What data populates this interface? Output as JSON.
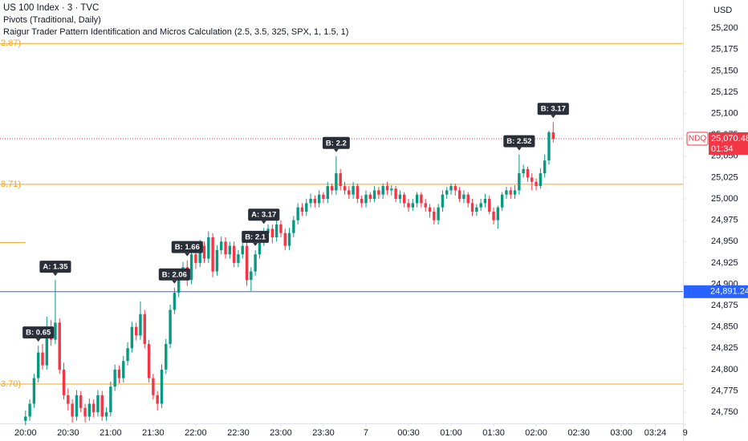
{
  "header": {
    "title": "US 100 Index · 3 · TVC",
    "indicator_1": "Pivots (Traditional, Daily)",
    "indicator_2": "Raigur Trader Pattern Identification and Micros Calculation (2.5, 3.5, 325, SPX, 1, 1.5, 1)",
    "currency": "USD"
  },
  "chart_data": {
    "type": "candlestick",
    "up_color": "#089981",
    "down_color": "#f23645",
    "ylim": [
      24737,
      25233
    ],
    "yticks": [
      {
        "value": 24750,
        "label": "24,750"
      },
      {
        "value": 24775,
        "label": "24,775"
      },
      {
        "value": 24800,
        "label": "24,800"
      },
      {
        "value": 24825,
        "label": "24,825"
      },
      {
        "value": 24850,
        "label": "24,850"
      },
      {
        "value": 24875,
        "label": "24,875"
      },
      {
        "value": 24900,
        "label": "24,900"
      },
      {
        "value": 24925,
        "label": "24,925"
      },
      {
        "value": 24950,
        "label": "24,950"
      },
      {
        "value": 24975,
        "label": "24,975"
      },
      {
        "value": 25000,
        "label": "25,000"
      },
      {
        "value": 25025,
        "label": "25,025"
      },
      {
        "value": 25050,
        "label": "25,050"
      },
      {
        "value": 25075,
        "label": "25,075"
      },
      {
        "value": 25100,
        "label": "25,100"
      },
      {
        "value": 25125,
        "label": "25,125"
      },
      {
        "value": 25150,
        "label": "25,150"
      },
      {
        "value": 25175,
        "label": "25,175"
      },
      {
        "value": 25200,
        "label": "25,200"
      }
    ],
    "xlim": [
      -6,
      154.5
    ],
    "xticks": [
      {
        "value": 0,
        "label": "20:00"
      },
      {
        "value": 10,
        "label": "20:30"
      },
      {
        "value": 20,
        "label": "21:00"
      },
      {
        "value": 30,
        "label": "21:30"
      },
      {
        "value": 40,
        "label": "22:00"
      },
      {
        "value": 50,
        "label": "22:30"
      },
      {
        "value": 60,
        "label": "23:00"
      },
      {
        "value": 70,
        "label": "23:30"
      },
      {
        "value": 80,
        "label": "7"
      },
      {
        "value": 90,
        "label": "00:30"
      },
      {
        "value": 100,
        "label": "01:00"
      },
      {
        "value": 110,
        "label": "01:30"
      },
      {
        "value": 120,
        "label": "02:00"
      },
      {
        "value": 130,
        "label": "02:30"
      },
      {
        "value": 140,
        "label": "03:00"
      },
      {
        "value": 148,
        "label": "03:24"
      },
      {
        "value": 155,
        "label": "9"
      }
    ],
    "candles": [
      [
        24740,
        24752,
        24735,
        24745
      ],
      [
        24745,
        24765,
        24740,
        24760
      ],
      [
        24760,
        24795,
        24755,
        24790
      ],
      [
        24790,
        24828,
        24785,
        24820
      ],
      [
        24820,
        24830,
        24800,
        24805
      ],
      [
        24805,
        24862,
        24800,
        24850
      ],
      [
        24850,
        24858,
        24828,
        24835
      ],
      [
        24835,
        24905,
        24830,
        24855
      ],
      [
        24855,
        24860,
        24795,
        24800
      ],
      [
        24800,
        24808,
        24765,
        24770
      ],
      [
        24770,
        24778,
        24752,
        24760
      ],
      [
        24760,
        24765,
        24738,
        24745
      ],
      [
        24745,
        24776,
        24740,
        24770
      ],
      [
        24770,
        24775,
        24750,
        24755
      ],
      [
        24755,
        24760,
        24738,
        24745
      ],
      [
        24745,
        24766,
        24740,
        24760
      ],
      [
        24760,
        24765,
        24744,
        24750
      ],
      [
        24750,
        24776,
        24745,
        24770
      ],
      [
        24770,
        24775,
        24740,
        24745
      ],
      [
        24745,
        24756,
        24740,
        24750
      ],
      [
        24750,
        24786,
        24745,
        24780
      ],
      [
        24780,
        24806,
        24775,
        24800
      ],
      [
        24800,
        24805,
        24784,
        24790
      ],
      [
        24790,
        24816,
        24785,
        24810
      ],
      [
        24810,
        24832,
        24805,
        24825
      ],
      [
        24825,
        24856,
        24820,
        24850
      ],
      [
        24850,
        24855,
        24834,
        24840
      ],
      [
        24840,
        24880,
        24835,
        24865
      ],
      [
        24865,
        24870,
        24825,
        24830
      ],
      [
        24830,
        24835,
        24785,
        24790
      ],
      [
        24790,
        24795,
        24765,
        24770
      ],
      [
        24770,
        24775,
        24752,
        24760
      ],
      [
        24760,
        24806,
        24755,
        24800
      ],
      [
        24800,
        24836,
        24795,
        24830
      ],
      [
        24830,
        24876,
        24825,
        24870
      ],
      [
        24870,
        24896,
        24865,
        24890
      ],
      [
        24890,
        24916,
        24885,
        24910
      ],
      [
        24910,
        24926,
        24905,
        24920
      ],
      [
        24920,
        24928,
        24898,
        24905
      ],
      [
        24905,
        24942,
        24900,
        24935
      ],
      [
        24935,
        24940,
        24918,
        24925
      ],
      [
        24925,
        24952,
        24920,
        24945
      ],
      [
        24945,
        24950,
        24925,
        24930
      ],
      [
        24930,
        24962,
        24925,
        24955
      ],
      [
        24955,
        24960,
        24908,
        24915
      ],
      [
        24915,
        24946,
        24910,
        24940
      ],
      [
        24940,
        24956,
        24935,
        24950
      ],
      [
        24950,
        24955,
        24930,
        24935
      ],
      [
        24935,
        24950,
        24930,
        24945
      ],
      [
        24945,
        24950,
        24920,
        24925
      ],
      [
        24925,
        24940,
        24920,
        24935
      ],
      [
        24935,
        24950,
        24930,
        24945
      ],
      [
        24945,
        24950,
        24898,
        24905
      ],
      [
        24905,
        24920,
        24892,
        24915
      ],
      [
        24915,
        24940,
        24910,
        24935
      ],
      [
        24935,
        24955,
        24930,
        24950
      ],
      [
        24950,
        24966,
        24945,
        24960
      ],
      [
        24960,
        24970,
        24950,
        24965
      ],
      [
        24965,
        24970,
        24948,
        24955
      ],
      [
        24955,
        24985,
        24950,
        24970
      ],
      [
        24970,
        24975,
        24955,
        24960
      ],
      [
        24960,
        24965,
        24940,
        24945
      ],
      [
        24945,
        24966,
        24940,
        24960
      ],
      [
        24960,
        24980,
        24955,
        24975
      ],
      [
        24975,
        24995,
        24970,
        24990
      ],
      [
        24990,
        24995,
        24980,
        24985
      ],
      [
        24985,
        25000,
        24980,
        24995
      ],
      [
        24995,
        25006,
        24990,
        25000
      ],
      [
        25000,
        25004,
        24990,
        24995
      ],
      [
        24995,
        25010,
        24990,
        25005
      ],
      [
        25005,
        25008,
        24995,
        25000
      ],
      [
        25000,
        25020,
        24995,
        25015
      ],
      [
        25015,
        25018,
        25005,
        25010
      ],
      [
        25010,
        25050,
        25005,
        25030
      ],
      [
        25030,
        25035,
        25010,
        25015
      ],
      [
        25015,
        25020,
        25005,
        25010
      ],
      [
        25010,
        25015,
        25000,
        25005
      ],
      [
        25005,
        25020,
        25000,
        25015
      ],
      [
        25015,
        25018,
        24995,
        25000
      ],
      [
        25000,
        25004,
        24990,
        24995
      ],
      [
        24995,
        25010,
        24990,
        25005
      ],
      [
        25005,
        25008,
        24996,
        25000
      ],
      [
        25000,
        25015,
        24996,
        25010
      ],
      [
        25010,
        25014,
        25000,
        25005
      ],
      [
        25005,
        25018,
        25000,
        25015
      ],
      [
        25015,
        25020,
        25005,
        25010
      ],
      [
        25010,
        25016,
        25004,
        25012
      ],
      [
        25012,
        25015,
        24996,
        25000
      ],
      [
        25000,
        25010,
        24995,
        25005
      ],
      [
        25005,
        25008,
        24990,
        24995
      ],
      [
        24995,
        25000,
        24985,
        24990
      ],
      [
        24990,
        25000,
        24986,
        24995
      ],
      [
        24995,
        25008,
        24990,
        25005
      ],
      [
        25005,
        25008,
        24990,
        24995
      ],
      [
        24995,
        25000,
        24985,
        24990
      ],
      [
        24990,
        24994,
        24978,
        24985
      ],
      [
        24985,
        24990,
        24970,
        24975
      ],
      [
        24975,
        24994,
        24970,
        24990
      ],
      [
        24990,
        25010,
        24985,
        25005
      ],
      [
        25005,
        25014,
        25000,
        25010
      ],
      [
        25010,
        25018,
        25005,
        25015
      ],
      [
        25015,
        25018,
        25004,
        25010
      ],
      [
        25010,
        25014,
        24996,
        25000
      ],
      [
        25000,
        25010,
        24995,
        25005
      ],
      [
        25005,
        25008,
        24990,
        24995
      ],
      [
        24995,
        25000,
        24980,
        24985
      ],
      [
        24985,
        24994,
        24980,
        24990
      ],
      [
        24990,
        25000,
        24986,
        24995
      ],
      [
        24995,
        25006,
        24990,
        25000
      ],
      [
        25000,
        25004,
        24982,
        24985
      ],
      [
        24985,
        24990,
        24970,
        24975
      ],
      [
        24975,
        24992,
        24965,
        24990
      ],
      [
        24990,
        25008,
        24986,
        25005
      ],
      [
        25005,
        25014,
        25000,
        25010
      ],
      [
        25010,
        25014,
        25000,
        25005
      ],
      [
        25005,
        25016,
        25000,
        25010
      ],
      [
        25010,
        25052,
        25005,
        25030
      ],
      [
        25030,
        25040,
        25025,
        25035
      ],
      [
        25035,
        25038,
        25020,
        25025
      ],
      [
        25025,
        25030,
        25010,
        25020
      ],
      [
        25020,
        25024,
        25010,
        25015
      ],
      [
        25015,
        25036,
        25012,
        25030
      ],
      [
        25030,
        25052,
        25025,
        25045
      ],
      [
        25045,
        25080,
        25040,
        25078
      ],
      [
        25078,
        25090,
        25066,
        25070.48
      ]
    ],
    "annotations": [
      {
        "text": "B: 0.65",
        "candle": 3
      },
      {
        "text": "A: 1.35",
        "candle": 7
      },
      {
        "text": "B: 2.06",
        "candle": 35
      },
      {
        "text": "B: 1.66",
        "candle": 38
      },
      {
        "text": "B: 2.1",
        "candle": 54
      },
      {
        "text": "A: 3.17",
        "candle": 56
      },
      {
        "text": "B: 2.2",
        "candle": 73
      },
      {
        "text": "B: 2.52",
        "candle": 116
      },
      {
        "text": "B: 3.17",
        "candle": 124
      }
    ],
    "levels": [
      {
        "value": 25182,
        "label": "2.87)",
        "color": "#f5a623"
      },
      {
        "value": 25017,
        "label": "8.71)",
        "color": "#f5a623"
      },
      {
        "value": 24949,
        "color": "#f5a623",
        "until": 0
      },
      {
        "value": 24891.24,
        "price_label": "24,891.24",
        "color": "#2962ff"
      },
      {
        "value": 24783,
        "label": "3.70)",
        "color": "#f5a623"
      }
    ],
    "last_price": {
      "value": 25070.48,
      "symbol": "NDQ",
      "price_label": "25,070.48",
      "countdown": "01:34",
      "color": "#f23645"
    }
  }
}
